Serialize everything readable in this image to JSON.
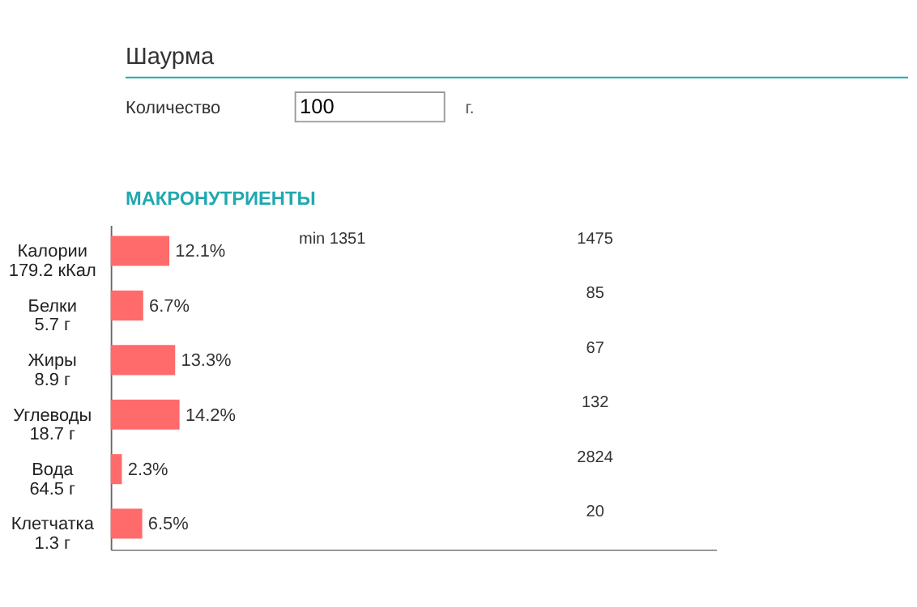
{
  "chart_data": {
    "type": "bar",
    "orientation": "horizontal",
    "title": "Шаурма",
    "categories": [
      "Калории\n179.2 кКал",
      "Белки\n5.7 г",
      "Жиры\n8.9 г",
      "Углеводы\n18.7 г",
      "Вода\n64.5 г",
      "Клетчатка\n1.3 г"
    ],
    "values": [
      12.1,
      6.7,
      13.3,
      14.2,
      2.3,
      6.5
    ],
    "value_labels": [
      "12.1%",
      "6.7%",
      "13.3%",
      "14.2%",
      "2.3%",
      "6.5%"
    ],
    "color": "#ff6b6b",
    "xlim": [
      0,
      125
    ],
    "tick_labels": "y",
    "annotations": [
      "Количество",
      "100",
      "г.",
      "МАКРОНУТРИЕНТЫ",
      "min 1351",
      "1475",
      "85",
      "67",
      "132",
      "2824",
      "20"
    ]
  }
}
